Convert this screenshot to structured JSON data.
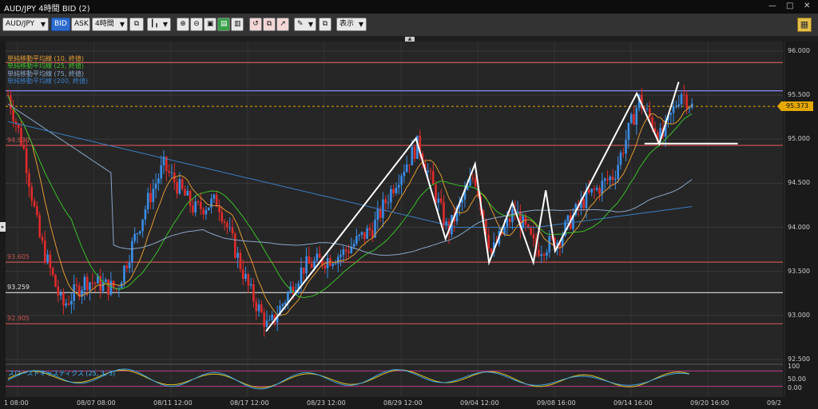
{
  "window": {
    "title": "AUD/JPY 4時間 BID (2)",
    "controls": [
      "—",
      "□",
      "✕"
    ]
  },
  "toolbar": {
    "symbol": "AUD/JPY",
    "bid_label": "BID",
    "ask_label": "ASK",
    "timeframe": "4時間",
    "display_label": "表示"
  },
  "chart_data": {
    "type": "candlestick",
    "ylim": [
      92.5,
      96.0
    ],
    "y_ticks": [
      "96.000",
      "95.500",
      "95.000",
      "94.500",
      "94.000",
      "93.500",
      "93.000",
      "92.500"
    ],
    "x_tick_labels": [
      "1 08:00",
      "08/07 08:00",
      "08/11 12:00",
      "08/17 12:00",
      "08/23 12:00",
      "08/29 12:00",
      "09/04 12:00",
      "09/08 16:00",
      "09/14 16:00",
      "09/20 16:00",
      "09/2"
    ],
    "legend": [
      {
        "name": "単純移動平均線 (10, 終値)",
        "color": "#e09a33"
      },
      {
        "name": "単純移動平均線 (25, 終値)",
        "color": "#3bbf2b"
      },
      {
        "name": "単純移動平均線 (75, 終値)",
        "color": "#8aa6c8"
      },
      {
        "name": "単純移動平均線 (200, 終値)",
        "color": "#3a7fc4"
      }
    ],
    "horizontal_levels": [
      {
        "label": "",
        "value": 95.87,
        "color": "#e06060"
      },
      {
        "label": "",
        "value": 95.55,
        "color": "#8a8aff"
      },
      {
        "label": "94.930",
        "value": 94.93,
        "color": "#c85050"
      },
      {
        "label": "93.605",
        "value": 93.605,
        "color": "#c85050"
      },
      {
        "label": "93.259",
        "value": 93.259,
        "color": "#e0e0e0"
      },
      {
        "label": "92.905",
        "value": 92.905,
        "color": "#c85050"
      }
    ],
    "current_price": {
      "label": "95.373",
      "value": 95.373
    },
    "drawn_lines": [
      [
        [
          0.335,
          92.82
        ],
        [
          0.528,
          95.01
        ],
        [
          0.566,
          93.87
        ],
        [
          0.604,
          94.72
        ],
        [
          0.622,
          93.6
        ],
        [
          0.652,
          94.28
        ],
        [
          0.679,
          93.6
        ],
        [
          0.695,
          94.42
        ],
        [
          0.707,
          93.73
        ],
        [
          0.812,
          95.52
        ],
        [
          0.841,
          94.95
        ],
        [
          0.866,
          95.65
        ]
      ],
      [
        [
          0.822,
          94.95
        ],
        [
          0.942,
          94.95
        ]
      ]
    ],
    "stochastic": {
      "label": "スローストキャスティクス (25, 3, 3)",
      "y_ticks": [
        "100",
        "50.00",
        "0.00"
      ],
      "upper": 80,
      "lower": 20
    }
  }
}
